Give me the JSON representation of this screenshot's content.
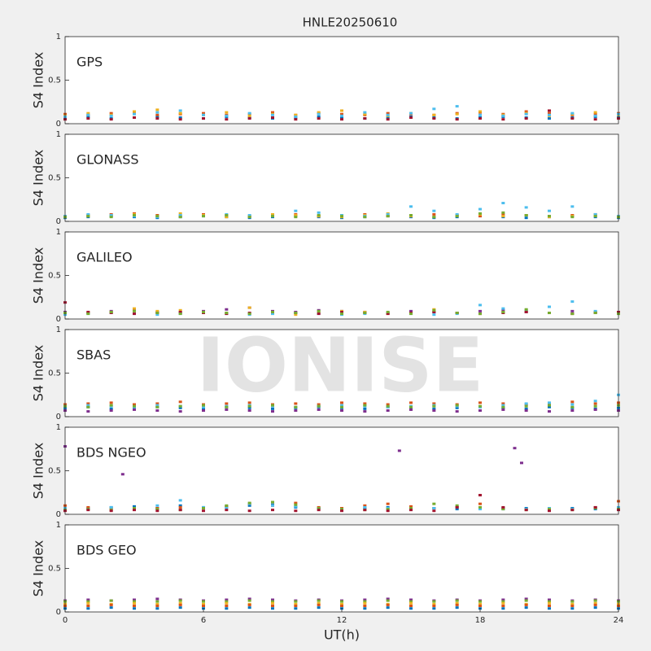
{
  "title": "HNLE20250610",
  "watermark": "IONISE",
  "chart_data": [
    {
      "type": "scatter",
      "title": "GPS",
      "ylabel": "S4 Index",
      "xlim": [
        0,
        24
      ],
      "ylim": [
        0,
        1
      ],
      "yticks": [
        0,
        0.5,
        1
      ],
      "x": [
        0,
        1,
        2,
        3,
        4,
        5,
        6,
        7,
        8,
        9,
        10,
        11,
        12,
        13,
        14,
        15,
        16,
        17,
        18,
        19,
        20,
        21,
        22,
        23,
        24
      ],
      "series": [
        {
          "color": "#0072bd",
          "values": [
            0.07,
            0.08,
            0.06,
            0.07,
            0.08,
            0.07,
            0.06,
            0.08,
            0.07,
            0.06,
            0.07,
            0.08,
            0.07,
            0.06,
            0.07,
            0.08,
            0.07,
            0.06,
            0.07,
            0.08,
            0.07,
            0.06,
            0.07,
            0.08,
            0.07
          ]
        },
        {
          "color": "#d95319",
          "values": [
            0.11,
            0.1,
            0.12,
            0.13,
            0.1,
            0.11,
            0.12,
            0.1,
            0.11,
            0.13,
            0.1,
            0.12,
            0.11,
            0.1,
            0.12,
            0.11,
            0.1,
            0.12,
            0.13,
            0.11,
            0.14,
            0.12,
            0.1,
            0.11,
            0.12
          ]
        },
        {
          "color": "#edb120",
          "values": [
            0.09,
            0.12,
            0.1,
            0.14,
            0.16,
            0.12,
            0.1,
            0.13,
            0.09,
            0.11,
            0.1,
            0.13,
            0.15,
            0.11,
            0.09,
            0.12,
            0.1,
            0.11,
            0.14,
            0.1,
            0.12,
            0.09,
            0.11,
            0.13,
            0.1
          ]
        },
        {
          "color": "#4dbeee",
          "values": [
            0.08,
            0.1,
            0.09,
            0.11,
            0.13,
            0.15,
            0.1,
            0.09,
            0.12,
            0.1,
            0.08,
            0.11,
            0.09,
            0.13,
            0.1,
            0.12,
            0.17,
            0.2,
            0.1,
            0.09,
            0.11,
            0.1,
            0.12,
            0.09,
            0.11
          ]
        },
        {
          "color": "#a2142f",
          "values": [
            0.05,
            0.06,
            0.05,
            0.07,
            0.06,
            0.05,
            0.06,
            0.05,
            0.06,
            0.07,
            0.05,
            0.06,
            0.05,
            0.06,
            0.05,
            0.07,
            0.06,
            0.05,
            0.06,
            0.05,
            0.06,
            0.15,
            0.06,
            0.05,
            0.06
          ]
        }
      ]
    },
    {
      "type": "scatter",
      "title": "GLONASS",
      "ylabel": "S4 Index",
      "xlim": [
        0,
        24
      ],
      "ylim": [
        0,
        1
      ],
      "yticks": [
        0,
        0.5,
        1
      ],
      "x": [
        0,
        1,
        2,
        3,
        4,
        5,
        6,
        7,
        8,
        9,
        10,
        11,
        12,
        13,
        14,
        15,
        16,
        17,
        18,
        19,
        20,
        21,
        22,
        23,
        24
      ],
      "series": [
        {
          "color": "#0072bd",
          "values": [
            0.04,
            0.05,
            0.06,
            0.05,
            0.04,
            0.05,
            0.06,
            0.05,
            0.04,
            0.05,
            0.06,
            0.05,
            0.04,
            0.05,
            0.06,
            0.05,
            0.04,
            0.05,
            0.06,
            0.05,
            0.04,
            0.05,
            0.06,
            0.05,
            0.04
          ]
        },
        {
          "color": "#d95319",
          "values": [
            0.06,
            0.07,
            0.08,
            0.09,
            0.07,
            0.06,
            0.08,
            0.07,
            0.06,
            0.07,
            0.08,
            0.06,
            0.07,
            0.08,
            0.06,
            0.07,
            0.08,
            0.07,
            0.06,
            0.08,
            0.07,
            0.06,
            0.07,
            0.08,
            0.06
          ]
        },
        {
          "color": "#edb120",
          "values": [
            0.05,
            0.06,
            0.07,
            0.08,
            0.06,
            0.09,
            0.07,
            0.05,
            0.06,
            0.08,
            0.07,
            0.06,
            0.05,
            0.07,
            0.09,
            0.06,
            0.05,
            0.07,
            0.08,
            0.06,
            0.07,
            0.05,
            0.06,
            0.07,
            0.05
          ]
        },
        {
          "color": "#4dbeee",
          "values": [
            0.06,
            0.08,
            0.07,
            0.06,
            0.05,
            0.07,
            0.06,
            0.08,
            0.07,
            0.06,
            0.12,
            0.1,
            0.07,
            0.06,
            0.08,
            0.17,
            0.12,
            0.08,
            0.14,
            0.21,
            0.16,
            0.12,
            0.17,
            0.08,
            0.06
          ]
        },
        {
          "color": "#77ac30",
          "values": [
            0.05,
            0.06,
            0.05,
            0.07,
            0.06,
            0.05,
            0.06,
            0.07,
            0.05,
            0.06,
            0.05,
            0.07,
            0.06,
            0.05,
            0.06,
            0.07,
            0.05,
            0.06,
            0.09,
            0.1,
            0.07,
            0.06,
            0.05,
            0.06,
            0.05
          ]
        }
      ]
    },
    {
      "type": "scatter",
      "title": "GALILEO",
      "ylabel": "S4 Index",
      "xlim": [
        0,
        24
      ],
      "ylim": [
        0,
        1
      ],
      "yticks": [
        0,
        0.5,
        1
      ],
      "x": [
        0,
        1,
        2,
        3,
        4,
        5,
        6,
        7,
        8,
        9,
        10,
        11,
        12,
        13,
        14,
        15,
        16,
        17,
        18,
        19,
        20,
        21,
        22,
        23,
        24
      ],
      "series": [
        {
          "color": "#7e2f8e",
          "values": [
            0.08,
            0.07,
            0.09,
            0.1,
            0.08,
            0.07,
            0.09,
            0.11,
            0.13,
            0.09,
            0.08,
            0.1,
            0.09,
            0.08,
            0.07,
            0.09,
            0.08,
            0.07,
            0.09,
            0.1,
            0.08,
            0.07,
            0.09,
            0.08,
            0.07
          ]
        },
        {
          "color": "#edb120",
          "values": [
            0.06,
            0.07,
            0.08,
            0.12,
            0.09,
            0.1,
            0.08,
            0.07,
            0.13,
            0.06,
            0.05,
            0.07,
            0.09,
            0.08,
            0.06,
            0.07,
            0.11,
            0.07,
            0.06,
            0.08,
            0.09,
            0.07,
            0.06,
            0.08,
            0.07
          ]
        },
        {
          "color": "#4dbeee",
          "values": [
            0.05,
            0.06,
            0.07,
            0.06,
            0.05,
            0.06,
            0.07,
            0.06,
            0.05,
            0.06,
            0.07,
            0.06,
            0.05,
            0.06,
            0.07,
            0.06,
            0.05,
            0.06,
            0.16,
            0.12,
            0.1,
            0.14,
            0.2,
            0.09,
            0.06
          ]
        },
        {
          "color": "#a2142f",
          "values": [
            0.19,
            0.08,
            0.07,
            0.06,
            0.07,
            0.08,
            0.07,
            0.06,
            0.07,
            0.08,
            0.07,
            0.06,
            0.08,
            0.07,
            0.06,
            0.07,
            0.08,
            0.07,
            0.06,
            0.07,
            0.08,
            0.07,
            0.06,
            0.07,
            0.08
          ]
        },
        {
          "color": "#77ac30",
          "values": [
            0.07,
            0.06,
            0.08,
            0.09,
            0.07,
            0.06,
            0.08,
            0.07,
            0.06,
            0.08,
            0.07,
            0.09,
            0.06,
            0.07,
            0.08,
            0.06,
            0.1,
            0.07,
            0.06,
            0.08,
            0.11,
            0.07,
            0.06,
            0.07,
            0.06
          ]
        }
      ]
    },
    {
      "type": "scatter",
      "title": "SBAS",
      "ylabel": "S4 Index",
      "xlim": [
        0,
        24
      ],
      "ylim": [
        0,
        1
      ],
      "yticks": [
        0,
        0.5,
        1
      ],
      "x": [
        0,
        1,
        2,
        3,
        4,
        5,
        6,
        7,
        8,
        9,
        10,
        11,
        12,
        13,
        14,
        15,
        16,
        17,
        18,
        19,
        20,
        21,
        22,
        23,
        24
      ],
      "series": [
        {
          "color": "#0072bd",
          "values": [
            0.1,
            0.11,
            0.09,
            0.1,
            0.11,
            0.1,
            0.09,
            0.11,
            0.1,
            0.09,
            0.1,
            0.11,
            0.1,
            0.09,
            0.11,
            0.1,
            0.09,
            0.1,
            0.11,
            0.1,
            0.09,
            0.11,
            0.1,
            0.09,
            0.1
          ]
        },
        {
          "color": "#d95319",
          "values": [
            0.14,
            0.15,
            0.16,
            0.14,
            0.15,
            0.17,
            0.14,
            0.15,
            0.16,
            0.14,
            0.15,
            0.14,
            0.16,
            0.15,
            0.14,
            0.16,
            0.15,
            0.14,
            0.16,
            0.15,
            0.14,
            0.15,
            0.17,
            0.15,
            0.16
          ]
        },
        {
          "color": "#7e2f8e",
          "values": [
            0.07,
            0.06,
            0.07,
            0.08,
            0.07,
            0.06,
            0.07,
            0.08,
            0.07,
            0.06,
            0.07,
            0.08,
            0.07,
            0.06,
            0.07,
            0.08,
            0.07,
            0.06,
            0.07,
            0.08,
            0.07,
            0.06,
            0.07,
            0.08,
            0.07
          ]
        },
        {
          "color": "#4dbeee",
          "values": [
            0.12,
            0.13,
            0.12,
            0.11,
            0.13,
            0.12,
            0.11,
            0.12,
            0.13,
            0.12,
            0.11,
            0.12,
            0.13,
            0.12,
            0.11,
            0.12,
            0.13,
            0.12,
            0.11,
            0.13,
            0.15,
            0.16,
            0.14,
            0.18,
            0.25
          ]
        },
        {
          "color": "#77ac30",
          "values": [
            0.12,
            0.11,
            0.13,
            0.12,
            0.11,
            0.12,
            0.13,
            0.11,
            0.12,
            0.13,
            0.11,
            0.12,
            0.11,
            0.13,
            0.12,
            0.11,
            0.12,
            0.13,
            0.12,
            0.11,
            0.12,
            0.13,
            0.11,
            0.12,
            0.13
          ]
        }
      ]
    },
    {
      "type": "scatter",
      "title": "BDS NGEO",
      "ylabel": "S4 Index",
      "xlim": [
        0,
        24
      ],
      "ylim": [
        0,
        1
      ],
      "yticks": [
        0,
        0.5,
        1
      ],
      "x": [
        0,
        1,
        2,
        3,
        4,
        5,
        6,
        7,
        8,
        9,
        10,
        11,
        12,
        13,
        14,
        15,
        16,
        17,
        18,
        19,
        20,
        21,
        22,
        23,
        24
      ],
      "series": [
        {
          "color": "#0072bd",
          "values": [
            0.06,
            0.07,
            0.08,
            0.09,
            0.07,
            0.1,
            0.08,
            0.09,
            0.1,
            0.11,
            0.08,
            0.07,
            0.06,
            0.07,
            0.08,
            0.06,
            0.07,
            0.06,
            0.07,
            0.06,
            0.07,
            0.06,
            0.07,
            0.06,
            0.07
          ]
        },
        {
          "color": "#d95319",
          "values": [
            0.1,
            0.08,
            0.07,
            0.06,
            0.07,
            0.08,
            0.07,
            0.09,
            0.12,
            0.1,
            0.13,
            0.08,
            0.07,
            0.1,
            0.12,
            0.09,
            0.07,
            0.08,
            0.12,
            0.07,
            0.06,
            0.07,
            0.06,
            0.08,
            0.15
          ]
        },
        {
          "color": "#4dbeee",
          "values": [
            0.07,
            0.06,
            0.08,
            0.07,
            0.1,
            0.16,
            0.08,
            0.07,
            0.12,
            0.1,
            0.09,
            0.07,
            0.06,
            0.08,
            0.07,
            0.06,
            0.07,
            0.08,
            0.06,
            0.07,
            0.06,
            0.07,
            0.06,
            0.07,
            0.08
          ]
        },
        {
          "color": "#77ac30",
          "values": [
            0.05,
            0.06,
            0.05,
            0.07,
            0.06,
            0.05,
            0.07,
            0.1,
            0.13,
            0.14,
            0.11,
            0.07,
            0.06,
            0.05,
            0.06,
            0.07,
            0.12,
            0.1,
            0.08,
            0.06,
            0.05,
            0.06,
            0.05,
            0.07,
            0.06
          ]
        },
        {
          "color": "#a2142f",
          "values": [
            0.04,
            0.05,
            0.04,
            0.05,
            0.04,
            0.05,
            0.04,
            0.05,
            0.04,
            0.05,
            0.04,
            0.05,
            0.04,
            0.05,
            0.04,
            0.05,
            0.04,
            0.08,
            0.22,
            0.08,
            0.05,
            0.04,
            0.05,
            0.08,
            0.05
          ]
        },
        {
          "color": "#7e2f8e",
          "x": [
            0,
            2.5,
            14.5,
            19.5,
            19.8
          ],
          "values": [
            0.78,
            0.46,
            0.73,
            0.76,
            0.59
          ]
        }
      ]
    },
    {
      "type": "scatter",
      "title": "BDS GEO",
      "ylabel": "S4 Index",
      "xlabel": "UT(h)",
      "xlim": [
        0,
        24
      ],
      "ylim": [
        0,
        1
      ],
      "yticks": [
        0,
        0.5,
        1
      ],
      "xticks": [
        0,
        6,
        12,
        18,
        24
      ],
      "x": [
        0,
        1,
        2,
        3,
        4,
        5,
        6,
        7,
        8,
        9,
        10,
        11,
        12,
        13,
        14,
        15,
        16,
        17,
        18,
        19,
        20,
        21,
        22,
        23,
        24
      ],
      "series": [
        {
          "color": "#7e2f8e",
          "values": [
            0.13,
            0.14,
            0.13,
            0.14,
            0.15,
            0.14,
            0.13,
            0.14,
            0.15,
            0.14,
            0.13,
            0.14,
            0.13,
            0.14,
            0.15,
            0.14,
            0.13,
            0.14,
            0.13,
            0.14,
            0.15,
            0.14,
            0.13,
            0.14,
            0.13
          ]
        },
        {
          "color": "#77ac30",
          "values": [
            0.12,
            0.12,
            0.13,
            0.12,
            0.12,
            0.13,
            0.12,
            0.12,
            0.13,
            0.12,
            0.12,
            0.13,
            0.12,
            0.12,
            0.13,
            0.12,
            0.12,
            0.13,
            0.12,
            0.12,
            0.13,
            0.12,
            0.12,
            0.13,
            0.12
          ]
        },
        {
          "color": "#edb120",
          "values": [
            0.09,
            0.1,
            0.09,
            0.1,
            0.09,
            0.1,
            0.09,
            0.1,
            0.09,
            0.1,
            0.09,
            0.1,
            0.09,
            0.1,
            0.09,
            0.1,
            0.09,
            0.1,
            0.09,
            0.1,
            0.09,
            0.1,
            0.09,
            0.1,
            0.09
          ]
        },
        {
          "color": "#d95319",
          "values": [
            0.07,
            0.07,
            0.08,
            0.07,
            0.07,
            0.08,
            0.07,
            0.07,
            0.08,
            0.07,
            0.07,
            0.08,
            0.07,
            0.07,
            0.08,
            0.07,
            0.07,
            0.08,
            0.07,
            0.07,
            0.08,
            0.07,
            0.07,
            0.08,
            0.07
          ]
        },
        {
          "color": "#0072bd",
          "values": [
            0.04,
            0.04,
            0.05,
            0.04,
            0.04,
            0.05,
            0.04,
            0.04,
            0.05,
            0.04,
            0.04,
            0.05,
            0.04,
            0.04,
            0.05,
            0.04,
            0.04,
            0.05,
            0.04,
            0.04,
            0.05,
            0.04,
            0.04,
            0.05,
            0.04
          ]
        }
      ]
    }
  ]
}
